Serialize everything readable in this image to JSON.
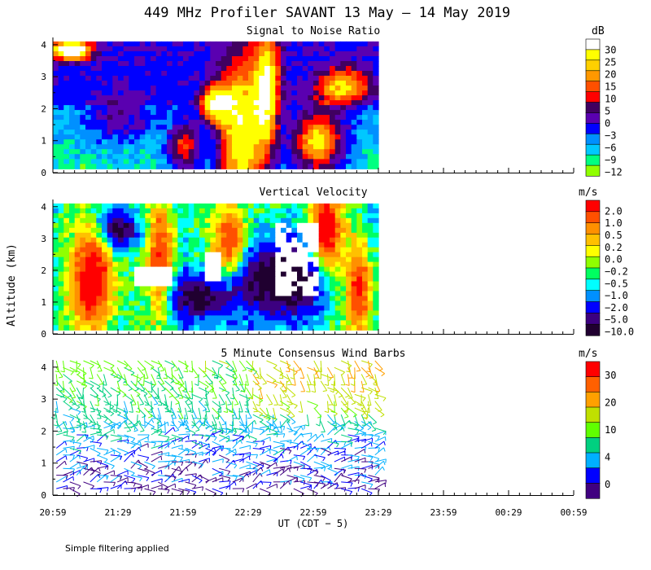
{
  "title": "449 MHz Profiler SAVANT 13 May – 14 May 2019",
  "y_axis_label": "Altitude (km)",
  "x_axis_label": "UT  (CDT − 5)",
  "x_ticks": [
    "20:59",
    "21:29",
    "21:59",
    "22:29",
    "22:59",
    "23:29",
    "23:59",
    "00:29",
    "00:59"
  ],
  "footnote": "Simple filtering applied",
  "chart_data": [
    {
      "type": "heatmap",
      "title": "Signal to Noise Ratio",
      "unit": "dB",
      "ylim": [
        0,
        4.2
      ],
      "y_ticks": [
        "0",
        "1",
        "2",
        "3",
        "4"
      ],
      "data_extent_x": [
        "20:59",
        "23:29"
      ],
      "colorbar": {
        "labels": [
          "30",
          "25",
          "20",
          "15",
          "10",
          "5",
          "0",
          "−3",
          "−6",
          "−9",
          "−12"
        ],
        "colors": [
          "#ffffff",
          "#ffff00",
          "#ffd000",
          "#ff9800",
          "#ff5000",
          "#ff0000",
          "#400060",
          "#5a00b0",
          "#0000ff",
          "#0090ff",
          "#00c8ff",
          "#00ff80",
          "#90ff00"
        ]
      }
    },
    {
      "type": "heatmap",
      "title": "Vertical Velocity",
      "unit": "m/s",
      "ylim": [
        0,
        4.2
      ],
      "y_ticks": [
        "0",
        "1",
        "2",
        "3",
        "4"
      ],
      "data_extent_x": [
        "20:59",
        "23:29"
      ],
      "colorbar": {
        "labels": [
          "2.0",
          "1.0",
          "0.5",
          "0.2",
          "0.0",
          "−0.2",
          "−0.5",
          "−1.0",
          "−2.0",
          "−5.0",
          "−10.0"
        ],
        "colors": [
          "#ff0000",
          "#ff5000",
          "#ff9000",
          "#ffc000",
          "#ffff00",
          "#90ff00",
          "#00ff60",
          "#00ffff",
          "#0090ff",
          "#0000ff",
          "#3c0080",
          "#200030"
        ]
      }
    },
    {
      "type": "wind_barbs",
      "title": "5 Minute Consensus Wind Barbs",
      "unit": "m/s",
      "ylim": [
        0,
        4.2
      ],
      "y_ticks": [
        "0",
        "1",
        "2",
        "3",
        "4"
      ],
      "data_extent_x": [
        "20:59",
        "23:29"
      ],
      "colorbar": {
        "labels": [
          "30",
          "20",
          "10",
          "4",
          "0"
        ],
        "colors": [
          "#ff0000",
          "#ff6000",
          "#ffa000",
          "#c0e000",
          "#60ff00",
          "#00d080",
          "#00b0ff",
          "#0000ff",
          "#400080"
        ]
      }
    }
  ]
}
